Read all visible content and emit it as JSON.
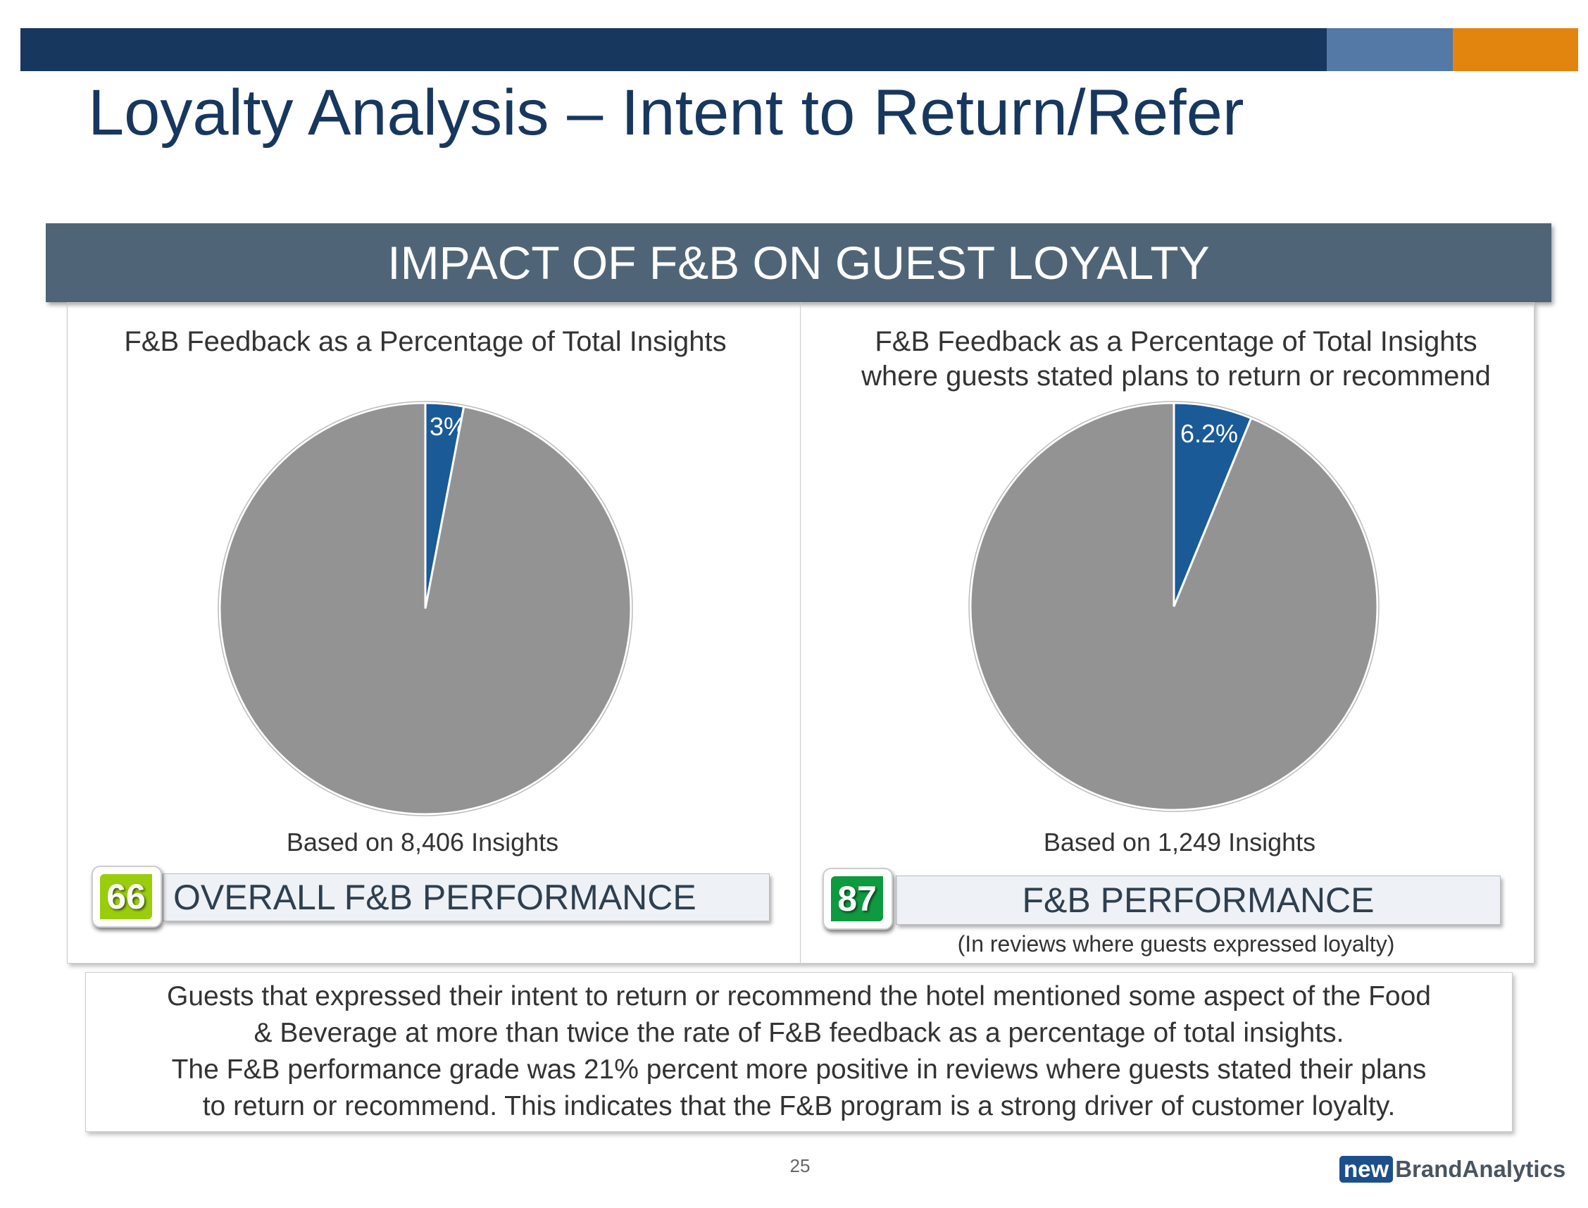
{
  "title": "Loyalty Analysis – Intent to Return/Refer",
  "band": "IMPACT OF F&B ON GUEST LOYALTY",
  "colors": {
    "navy": "#17375e",
    "steel": "#5479a6",
    "orange": "#e2850e",
    "slice": "#1a5a96",
    "rest": "#939393",
    "badge_left": "#9acd0c",
    "badge_right": "#0e9a3f"
  },
  "chart_data": [
    {
      "type": "pie",
      "title": "F&B Feedback as a Percentage of Total Insights",
      "slices": [
        {
          "name": "F&B",
          "value": 3,
          "label": "3%"
        },
        {
          "name": "Other",
          "value": 97
        }
      ],
      "footnote": "Based on 8,406 Insights"
    },
    {
      "type": "pie",
      "title": "F&B Feedback as a Percentage of Total Insights where guests stated plans to return or recommend",
      "title_lines": [
        "F&B Feedback as a Percentage of Total Insights",
        "where guests stated plans to return or recommend"
      ],
      "slices": [
        {
          "name": "F&B",
          "value": 6.2,
          "label": "6.2%"
        },
        {
          "name": "Other",
          "value": 93.8
        }
      ],
      "footnote": "Based on 1,249 Insights"
    }
  ],
  "left_score": {
    "value": "66",
    "label": "OVERALL F&B PERFORMANCE"
  },
  "right_score": {
    "value": "87",
    "label": "F&B PERFORMANCE",
    "note": "(In reviews where guests expressed loyalty)"
  },
  "summary": [
    "Guests that expressed their intent to return or recommend the hotel mentioned some aspect of the Food",
    "& Beverage at more than twice the rate of F&B feedback as a percentage of total insights.",
    "The F&B performance grade was  21% percent more positive in reviews where guests stated their plans",
    "to return or recommend.  This indicates that the F&B program is a strong driver of customer loyalty."
  ],
  "page_number": "25",
  "logo": {
    "new": "new",
    "brand": "BrandAnalytics"
  }
}
